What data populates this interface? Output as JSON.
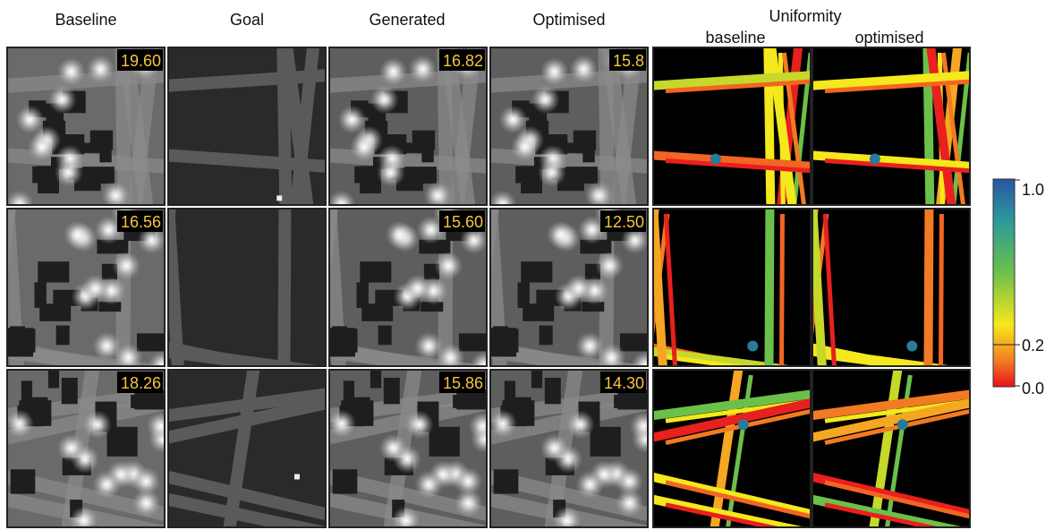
{
  "columns": [
    "Baseline",
    "Goal",
    "Generated",
    "Optimised",
    "Uniformity"
  ],
  "uniformity_subcolumns": [
    "baseline",
    "optimised"
  ],
  "rows": [
    {
      "baseline": "19.60",
      "generated": "16.82",
      "optimised": "15.8"
    },
    {
      "baseline": "16.56",
      "generated": "15.60",
      "optimised": "12.50"
    },
    {
      "baseline": "18.26",
      "generated": "15.86",
      "optimised": "14.30"
    }
  ],
  "colorbar": {
    "ticks": [
      "1.0",
      "0.2",
      "0.0"
    ]
  }
}
